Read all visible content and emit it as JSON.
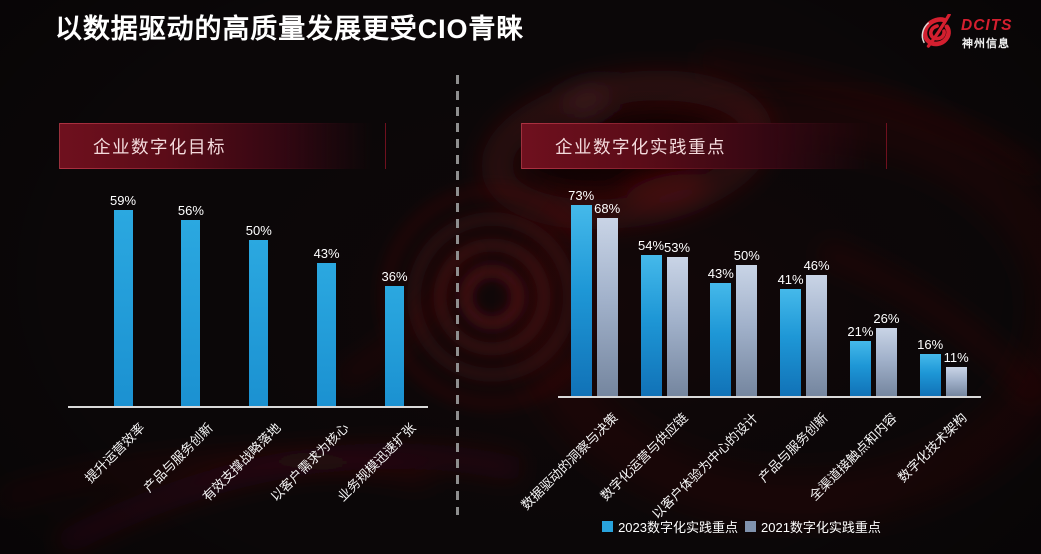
{
  "title": "以数据驱动的高质量发展更受CIO青睐",
  "logo": {
    "brand": "DCITS",
    "brand_cn": "神州信息",
    "icon": "dcits-swirl-icon"
  },
  "colors": {
    "accent_red": "#d41f2f",
    "header_box_red": "#7c1322",
    "bar_left_top": "#2ba8e0",
    "bar_left_bottom": "#1b91d1",
    "bar_2023_top": "#45b9ea",
    "bar_2023_bottom": "#1172b7",
    "bar_2021_top": "#c9d4e6",
    "bar_2021_bottom": "#75869f",
    "legend_2023": "#29a3dc",
    "legend_2021": "#8092ad",
    "axis": "#d9d9d9",
    "text": "#ffffff"
  },
  "chart_data": [
    {
      "type": "bar",
      "title": "企业数字化目标",
      "unit": "%",
      "categories": [
        "提升运营效率",
        "产品与服务创新",
        "有效支撑战略落地",
        "以客户需求为核心",
        "业务规模迅速扩张"
      ],
      "values": [
        59,
        56,
        50,
        43,
        36
      ],
      "ylim": [
        0,
        65
      ],
      "grid": false,
      "legend_position": "none"
    },
    {
      "type": "bar",
      "title": "企业数字化实践重点",
      "unit": "%",
      "categories": [
        "数据驱动的洞察与决策",
        "数字化运营与供应链",
        "以客户体验为中心的设计",
        "产品与服务创新",
        "全渠道接触点和内容",
        "数字化技术架构"
      ],
      "series": [
        {
          "name": "2023数字化实践重点",
          "values": [
            73,
            54,
            43,
            41,
            21,
            16
          ]
        },
        {
          "name": "2021数字化实践重点",
          "values": [
            68,
            53,
            50,
            46,
            26,
            11
          ]
        }
      ],
      "ylim": [
        0,
        80
      ],
      "grid": false,
      "legend_position": "bottom"
    }
  ]
}
